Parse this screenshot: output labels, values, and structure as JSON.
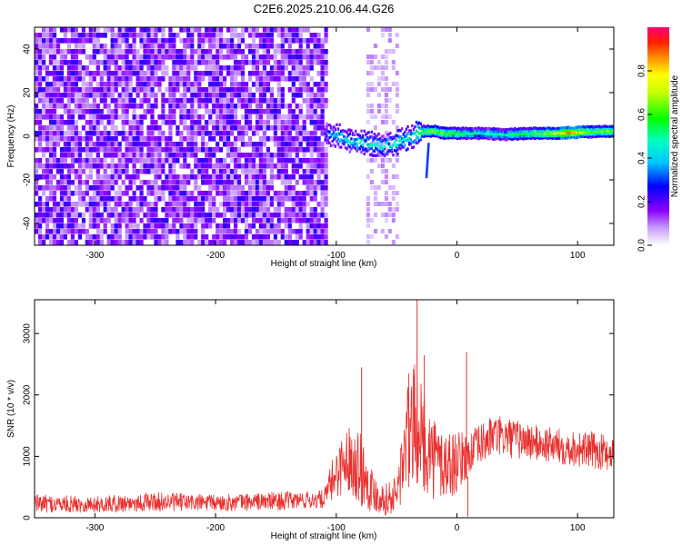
{
  "chart_data": [
    {
      "type": "heatmap",
      "title": "C2E6.2025.210.06.44.G26",
      "xlabel": "Height of straight line (km)",
      "ylabel": "Frequency (Hz)",
      "xlim": [
        -350,
        130
      ],
      "ylim": [
        -50,
        50
      ],
      "x_ticks": [
        "-300",
        "-200",
        "-100",
        "0",
        "100"
      ],
      "y_ticks": [
        "40",
        "20",
        "0",
        "-20",
        "-40"
      ],
      "colorbar": {
        "label": "Normalized spectral amplitude",
        "ticks": [
          "0.0",
          "0.2",
          "0.4",
          "0.6",
          "0.8"
        ],
        "range": [
          0,
          1
        ],
        "colormap": [
          "#ffffff",
          "#8a00ff",
          "#0000ff",
          "#00ffff",
          "#00ff00",
          "#ffff00",
          "#ff8800",
          "#ff0000",
          "#ff0070"
        ]
      },
      "regions": [
        {
          "label": "broadband noise",
          "x_range": [
            -350,
            -107
          ],
          "freq_range": [
            -50,
            50
          ],
          "level": 0.15
        },
        {
          "label": "noise column",
          "x_range": [
            -75,
            -50
          ],
          "freq_range": [
            -50,
            50
          ],
          "level": 0.05
        },
        {
          "label": "signal trace",
          "x_range": [
            -110,
            130
          ],
          "center_freq": [
            [
              -110,
              1
            ],
            [
              -100,
              0
            ],
            [
              -90,
              -2
            ],
            [
              -80,
              -3
            ],
            [
              -70,
              -4
            ],
            [
              -60,
              -5
            ],
            [
              -50,
              -3
            ],
            [
              -40,
              -1
            ],
            [
              -30,
              2
            ],
            [
              -20,
              2
            ],
            [
              -10,
              1
            ],
            [
              0,
              1
            ],
            [
              20,
              1
            ],
            [
              40,
              0.5
            ],
            [
              60,
              1
            ],
            [
              80,
              1
            ],
            [
              100,
              1.5
            ],
            [
              130,
              2
            ]
          ],
          "amplitude": [
            [
              -110,
              0.25
            ],
            [
              -100,
              0.45
            ],
            [
              -80,
              0.45
            ],
            [
              -60,
              0.45
            ],
            [
              -40,
              0.5
            ],
            [
              -20,
              0.65
            ],
            [
              0,
              0.55
            ],
            [
              20,
              0.45
            ],
            [
              40,
              0.5
            ],
            [
              60,
              0.55
            ],
            [
              80,
              0.7
            ],
            [
              95,
              0.9
            ],
            [
              110,
              0.6
            ],
            [
              130,
              0.65
            ]
          ]
        }
      ]
    },
    {
      "type": "line",
      "xlabel": "Height of straight line (km)",
      "ylabel": "SNR (10 * v/v)",
      "xlim": [
        -350,
        130
      ],
      "ylim": [
        0,
        3550
      ],
      "x_ticks": [
        "-300",
        "-200",
        "-100",
        "0",
        "100"
      ],
      "y_ticks": [
        "0",
        "1000",
        "2000",
        "3000"
      ],
      "color": "#e8302e",
      "envelope": [
        {
          "x": -350,
          "low": 80,
          "high": 380
        },
        {
          "x": -300,
          "low": 80,
          "high": 350
        },
        {
          "x": -250,
          "low": 100,
          "high": 420
        },
        {
          "x": -200,
          "low": 100,
          "high": 380
        },
        {
          "x": -150,
          "low": 120,
          "high": 420
        },
        {
          "x": -110,
          "low": 150,
          "high": 450
        },
        {
          "x": -100,
          "low": 300,
          "high": 1200
        },
        {
          "x": -90,
          "low": 450,
          "high": 1500
        },
        {
          "x": -80,
          "low": 200,
          "high": 1500
        },
        {
          "x": -70,
          "low": 80,
          "high": 800
        },
        {
          "x": -60,
          "low": 40,
          "high": 550
        },
        {
          "x": -50,
          "low": 50,
          "high": 700
        },
        {
          "x": -45,
          "low": 200,
          "high": 1600
        },
        {
          "x": -40,
          "low": 500,
          "high": 2300
        },
        {
          "x": -35,
          "low": 600,
          "high": 2500
        },
        {
          "x": -30,
          "low": 500,
          "high": 2200
        },
        {
          "x": -20,
          "low": 300,
          "high": 1700
        },
        {
          "x": -10,
          "low": 200,
          "high": 1500
        },
        {
          "x": 0,
          "low": 400,
          "high": 1400
        },
        {
          "x": 10,
          "low": 700,
          "high": 1400
        },
        {
          "x": 30,
          "low": 1000,
          "high": 1680
        },
        {
          "x": 50,
          "low": 950,
          "high": 1600
        },
        {
          "x": 70,
          "low": 900,
          "high": 1500
        },
        {
          "x": 90,
          "low": 850,
          "high": 1450
        },
        {
          "x": 110,
          "low": 800,
          "high": 1400
        },
        {
          "x": 130,
          "low": 750,
          "high": 1350
        }
      ],
      "spikes": [
        {
          "x": -79,
          "y": 2450
        },
        {
          "x": -40,
          "y": 2350
        },
        {
          "x": -33,
          "y": 3550
        },
        {
          "x": -27,
          "y": 2650
        },
        {
          "x": 8,
          "y": 2700
        },
        {
          "x": 9,
          "y": 20
        }
      ]
    }
  ]
}
